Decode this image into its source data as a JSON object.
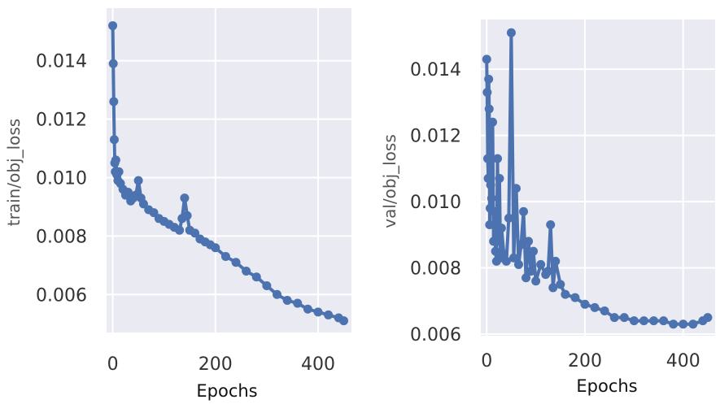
{
  "colors": {
    "plot_background": "#eaeaf2",
    "grid": "#ffffff",
    "series": "#4c72b0"
  },
  "chart_data": [
    {
      "type": "line",
      "marker": "circle",
      "ylabel": "train/obj_loss",
      "xlabel": "Epochs",
      "xlim": [
        -12,
        465
      ],
      "ylim": [
        0.0047,
        0.0158
      ],
      "xticks": [
        0,
        200,
        400
      ],
      "xtick_labels": [
        "0",
        "200",
        "400"
      ],
      "yticks": [
        0.006,
        0.008,
        0.01,
        0.012,
        0.014
      ],
      "ytick_labels": [
        "0.006",
        "0.008",
        "0.010",
        "0.012",
        "0.014"
      ],
      "grid": true,
      "legend": "none",
      "series": [
        {
          "x": [
            0,
            1,
            2,
            3,
            4,
            5,
            6,
            8,
            10,
            12,
            15,
            20,
            25,
            30,
            35,
            40,
            45,
            50,
            55,
            60,
            70,
            80,
            90,
            100,
            110,
            120,
            130,
            135,
            140,
            145,
            150,
            160,
            170,
            180,
            190,
            200,
            220,
            240,
            260,
            280,
            300,
            320,
            340,
            360,
            380,
            400,
            420,
            440,
            450
          ],
          "y": [
            0.0152,
            0.0139,
            0.0126,
            0.0113,
            0.0105,
            0.0102,
            0.0106,
            0.0101,
            0.0099,
            0.0102,
            0.0098,
            0.0096,
            0.0094,
            0.0095,
            0.0092,
            0.0093,
            0.0094,
            0.0099,
            0.0093,
            0.0091,
            0.0089,
            0.0088,
            0.0086,
            0.0085,
            0.0084,
            0.0083,
            0.0082,
            0.0086,
            0.0093,
            0.0087,
            0.0082,
            0.0081,
            0.0079,
            0.0078,
            0.0077,
            0.0076,
            0.0073,
            0.0071,
            0.0068,
            0.0066,
            0.0063,
            0.006,
            0.0058,
            0.0057,
            0.0055,
            0.0054,
            0.0053,
            0.0052,
            0.0051
          ]
        }
      ]
    },
    {
      "type": "line",
      "marker": "circle",
      "ylabel": "val/obj_loss",
      "xlabel": "Epochs",
      "xlim": [
        -12,
        465
      ],
      "ylim": [
        0.00595,
        0.0155
      ],
      "xticks": [
        0,
        200,
        400
      ],
      "xtick_labels": [
        "0",
        "200",
        "400"
      ],
      "yticks": [
        0.006,
        0.008,
        0.01,
        0.012,
        0.014
      ],
      "ytick_labels": [
        "0.006",
        "0.008",
        "0.010",
        "0.012",
        "0.014"
      ],
      "grid": true,
      "legend": "none",
      "series": [
        {
          "x": [
            0,
            1,
            2,
            3,
            4,
            5,
            6,
            7,
            8,
            10,
            12,
            14,
            16,
            18,
            20,
            22,
            24,
            26,
            28,
            30,
            35,
            40,
            45,
            50,
            55,
            60,
            65,
            70,
            75,
            80,
            85,
            90,
            95,
            100,
            110,
            120,
            125,
            130,
            135,
            140,
            150,
            160,
            180,
            200,
            220,
            240,
            260,
            280,
            300,
            320,
            340,
            360,
            380,
            400,
            420,
            440,
            450
          ],
          "y": [
            0.0143,
            0.0133,
            0.0113,
            0.0107,
            0.0137,
            0.0128,
            0.0093,
            0.0098,
            0.0105,
            0.0101,
            0.0124,
            0.0088,
            0.0097,
            0.0085,
            0.0082,
            0.0113,
            0.0088,
            0.0107,
            0.0083,
            0.0092,
            0.0084,
            0.0082,
            0.0095,
            0.0151,
            0.0083,
            0.0104,
            0.0081,
            0.0087,
            0.0097,
            0.0077,
            0.0088,
            0.0079,
            0.0085,
            0.0076,
            0.0081,
            0.0078,
            0.0079,
            0.0093,
            0.0074,
            0.0082,
            0.0075,
            0.0072,
            0.0071,
            0.0069,
            0.0068,
            0.0067,
            0.0065,
            0.0065,
            0.0064,
            0.0064,
            0.0064,
            0.0064,
            0.0063,
            0.0063,
            0.0063,
            0.0064,
            0.0065
          ]
        }
      ]
    }
  ]
}
